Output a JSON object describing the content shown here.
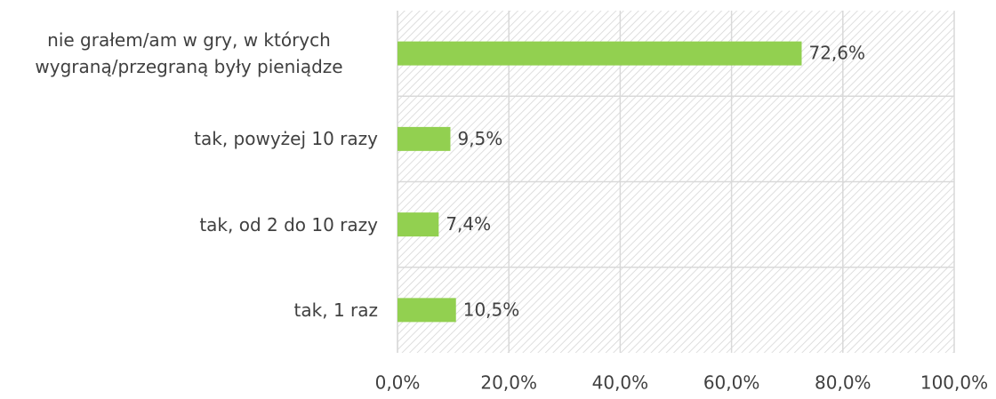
{
  "chart_data": {
    "type": "bar",
    "orientation": "horizontal",
    "categories": [
      "nie grałem/am w gry, w których wygraną/przegraną były pieniądze",
      "tak, powyżej 10 razy",
      "tak, od 2 do 10 razy",
      "tak, 1 raz"
    ],
    "values": [
      72.6,
      9.5,
      7.4,
      10.5
    ],
    "value_labels": [
      "72,6%",
      "9,5%",
      "7,4%",
      "10,5%"
    ],
    "color": "#92d050",
    "xlim": [
      0,
      100
    ],
    "xticks": [
      {
        "value": 0,
        "label": "0,0%"
      },
      {
        "value": 20,
        "label": "20,0%"
      },
      {
        "value": 40,
        "label": "40,0%"
      },
      {
        "value": 60,
        "label": "60,0%"
      },
      {
        "value": 80,
        "label": "80,0%"
      },
      {
        "value": 100,
        "label": "100,0%"
      }
    ],
    "grid": true
  }
}
